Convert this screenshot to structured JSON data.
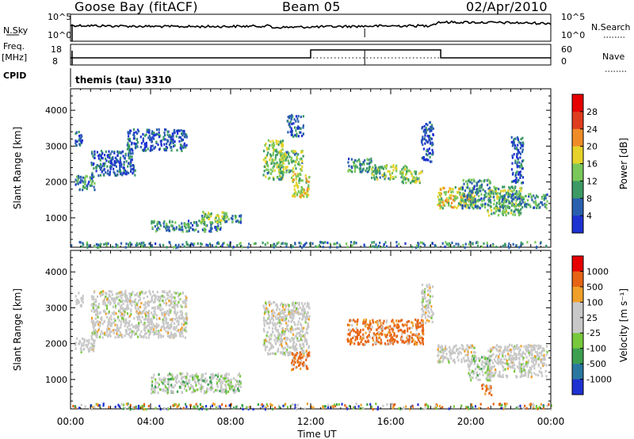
{
  "header": {
    "station": "Goose Bay (fitACF)",
    "beam": "Beam 05",
    "date": "02/Apr/2010"
  },
  "noise_panel": {
    "left_label": "N.Sky",
    "left_ticks": [
      "10^5",
      "10^0"
    ],
    "right_ticks": [
      "10^5",
      "10^0"
    ],
    "right_label": "N.Search"
  },
  "freq_panel": {
    "left_label_top": "Freq.",
    "left_label_unit": "[MHz]",
    "left_ticks": [
      "18",
      "8"
    ],
    "right_ticks": [
      "60",
      "0"
    ],
    "right_label": "Nave"
  },
  "cpid_panel": {
    "label": "CPID",
    "text": "themis (tau) 3310"
  },
  "x_axis": {
    "ticks": [
      "00:00",
      "04:00",
      "08:00",
      "12:00",
      "16:00",
      "20:00",
      "00:00"
    ],
    "label": "Time UT"
  },
  "colors": {
    "frame": "#000000",
    "noise_line": "#000000"
  },
  "chart_data": [
    {
      "type": "heatmap",
      "panel": "power",
      "ylabel": "Slant Range [km]",
      "yticks": [
        "1000",
        "2000",
        "3000",
        "4000"
      ],
      "ylim": [
        180,
        4600
      ],
      "xlim": [
        0,
        24
      ],
      "colorbar": {
        "label": "Power [dB]",
        "ticks": [
          "4",
          "8",
          "12",
          "16",
          "20",
          "24",
          "28"
        ],
        "colors": [
          "#1e32d2",
          "#2a5fb0",
          "#3c9a64",
          "#7ac85a",
          "#e6d22a",
          "#f08c28",
          "#e03c1e",
          "#e60000"
        ]
      },
      "regions": [
        {
          "t": [
            0.2,
            0.6
          ],
          "r": [
            3050,
            3450
          ],
          "level": 1
        },
        {
          "t": [
            0.2,
            1.2
          ],
          "r": [
            1800,
            2200
          ],
          "level": 2
        },
        {
          "t": [
            1.0,
            3.2
          ],
          "r": [
            2200,
            2900
          ],
          "level": 1
        },
        {
          "t": [
            2.8,
            5.8
          ],
          "r": [
            2900,
            3500
          ],
          "level": 1
        },
        {
          "t": [
            4.0,
            7.5
          ],
          "r": [
            650,
            950
          ],
          "level": 2
        },
        {
          "t": [
            6.5,
            7.8
          ],
          "r": [
            900,
            1200
          ],
          "level": 3
        },
        {
          "t": [
            7.5,
            8.5
          ],
          "r": [
            900,
            1100
          ],
          "level": 2
        },
        {
          "t": [
            9.6,
            10.6
          ],
          "r": [
            2100,
            3200
          ],
          "level": 3
        },
        {
          "t": [
            10.4,
            11.6
          ],
          "r": [
            2300,
            2900
          ],
          "level": 3
        },
        {
          "t": [
            11.0,
            11.9
          ],
          "r": [
            1600,
            2300
          ],
          "level": 4
        },
        {
          "t": [
            10.8,
            11.6
          ],
          "r": [
            3300,
            3900
          ],
          "level": 1
        },
        {
          "t": [
            13.8,
            15.0
          ],
          "r": [
            2300,
            2700
          ],
          "level": 2
        },
        {
          "t": [
            15.0,
            16.8
          ],
          "r": [
            2100,
            2500
          ],
          "level": 3
        },
        {
          "t": [
            16.5,
            17.6
          ],
          "r": [
            2000,
            2350
          ],
          "level": 3
        },
        {
          "t": [
            17.5,
            18.1
          ],
          "r": [
            2600,
            3700
          ],
          "level": 1
        },
        {
          "t": [
            18.3,
            20.2
          ],
          "r": [
            1300,
            1900
          ],
          "level": 4
        },
        {
          "t": [
            19.5,
            21.0
          ],
          "r": [
            1300,
            2100
          ],
          "level": 2
        },
        {
          "t": [
            20.8,
            22.5
          ],
          "r": [
            1100,
            1900
          ],
          "level": 3
        },
        {
          "t": [
            21.5,
            23.8
          ],
          "r": [
            1300,
            1700
          ],
          "level": 2
        },
        {
          "t": [
            22.0,
            22.6
          ],
          "r": [
            2000,
            3300
          ],
          "level": 1
        },
        {
          "t": [
            0.0,
            24.0
          ],
          "r": [
            200,
            360
          ],
          "level": 2
        }
      ]
    },
    {
      "type": "heatmap",
      "panel": "velocity",
      "ylabel": "Slant Range [km]",
      "yticks": [
        "1000",
        "2000",
        "3000",
        "4000"
      ],
      "ylim": [
        180,
        4600
      ],
      "xlim": [
        0,
        24
      ],
      "colorbar": {
        "label": "Velocity [m s⁻¹]",
        "ticks": [
          "1000",
          "500",
          "100",
          "25",
          "-25",
          "-100",
          "-500",
          "-1000"
        ],
        "colors": [
          "#1e32d2",
          "#2a78a0",
          "#3ca050",
          "#78c83c",
          "#c8c8c8",
          "#c8c8c8",
          "#f0a028",
          "#e66414",
          "#e60000"
        ]
      },
      "regions": [
        {
          "t": [
            0.2,
            1.2
          ],
          "r": [
            1800,
            2200
          ],
          "class": "gray"
        },
        {
          "t": [
            0.2,
            0.6
          ],
          "r": [
            3050,
            3450
          ],
          "class": "gray"
        },
        {
          "t": [
            1.0,
            5.8
          ],
          "r": [
            2200,
            3500
          ],
          "class": "gray"
        },
        {
          "t": [
            4.0,
            8.5
          ],
          "r": [
            650,
            1200
          ],
          "class": "gray_green"
        },
        {
          "t": [
            9.6,
            11.9
          ],
          "r": [
            1700,
            3200
          ],
          "class": "gray"
        },
        {
          "t": [
            11.0,
            11.9
          ],
          "r": [
            1300,
            1800
          ],
          "class": "orange"
        },
        {
          "t": [
            13.8,
            17.6
          ],
          "r": [
            2000,
            2700
          ],
          "class": "orange"
        },
        {
          "t": [
            17.5,
            18.1
          ],
          "r": [
            2600,
            3700
          ],
          "class": "gray"
        },
        {
          "t": [
            18.3,
            20.2
          ],
          "r": [
            1500,
            2000
          ],
          "class": "gray"
        },
        {
          "t": [
            19.8,
            21.0
          ],
          "r": [
            1000,
            1700
          ],
          "class": "gray_green"
        },
        {
          "t": [
            20.8,
            23.8
          ],
          "r": [
            1100,
            2000
          ],
          "class": "gray"
        },
        {
          "t": [
            20.5,
            21.0
          ],
          "r": [
            600,
            900
          ],
          "class": "orange"
        },
        {
          "t": [
            0.0,
            24.0
          ],
          "r": [
            200,
            360
          ],
          "class": "mixed"
        }
      ]
    }
  ]
}
